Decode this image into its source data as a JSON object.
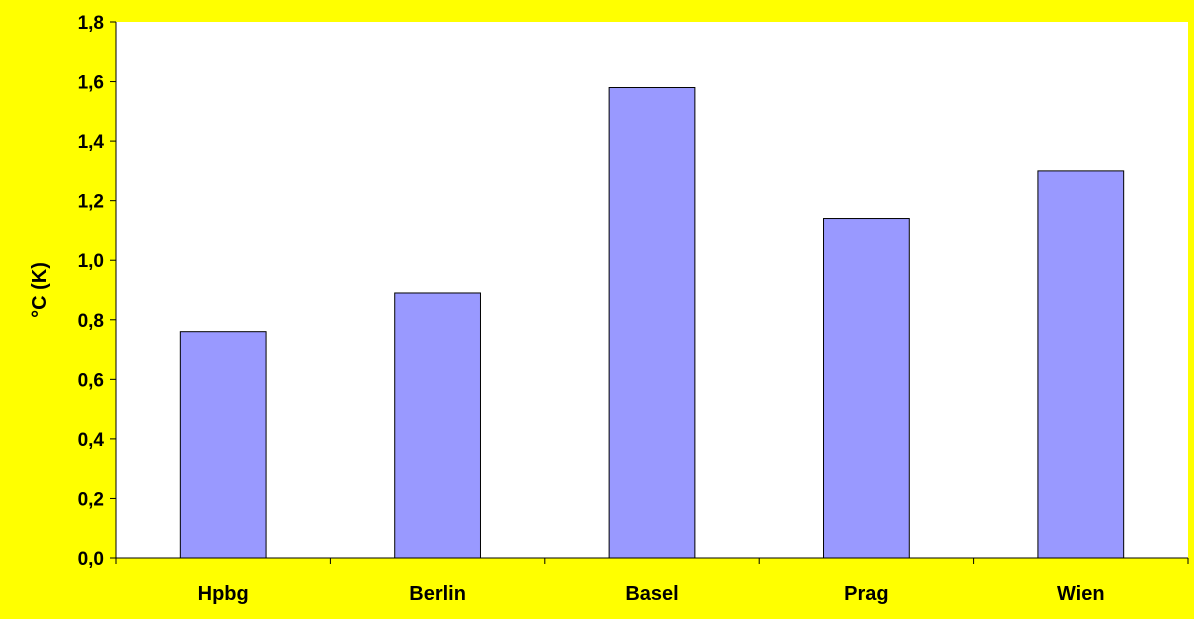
{
  "colors": {
    "background": "#ffff00",
    "plot_area": "#ffffff",
    "bar_fill": "#9999ff",
    "bar_stroke": "#000000",
    "axis": "#000000"
  },
  "chart_data": {
    "type": "bar",
    "title": "",
    "xlabel": "",
    "ylabel": "°C (K)",
    "categories": [
      "Hpbg",
      "Berlin",
      "Basel",
      "Prag",
      "Wien"
    ],
    "values": [
      0.76,
      0.89,
      1.58,
      1.14,
      1.3
    ],
    "ylim": [
      0,
      1.8
    ],
    "yticks": [
      0.0,
      0.2,
      0.4,
      0.6,
      0.8,
      1.0,
      1.2,
      1.4,
      1.6,
      1.8
    ],
    "ytick_labels": [
      "0,0",
      "0,2",
      "0,4",
      "0,6",
      "0,8",
      "1,0",
      "1,2",
      "1,4",
      "1,6",
      "1,8"
    ],
    "grid": false,
    "legend": "none"
  }
}
